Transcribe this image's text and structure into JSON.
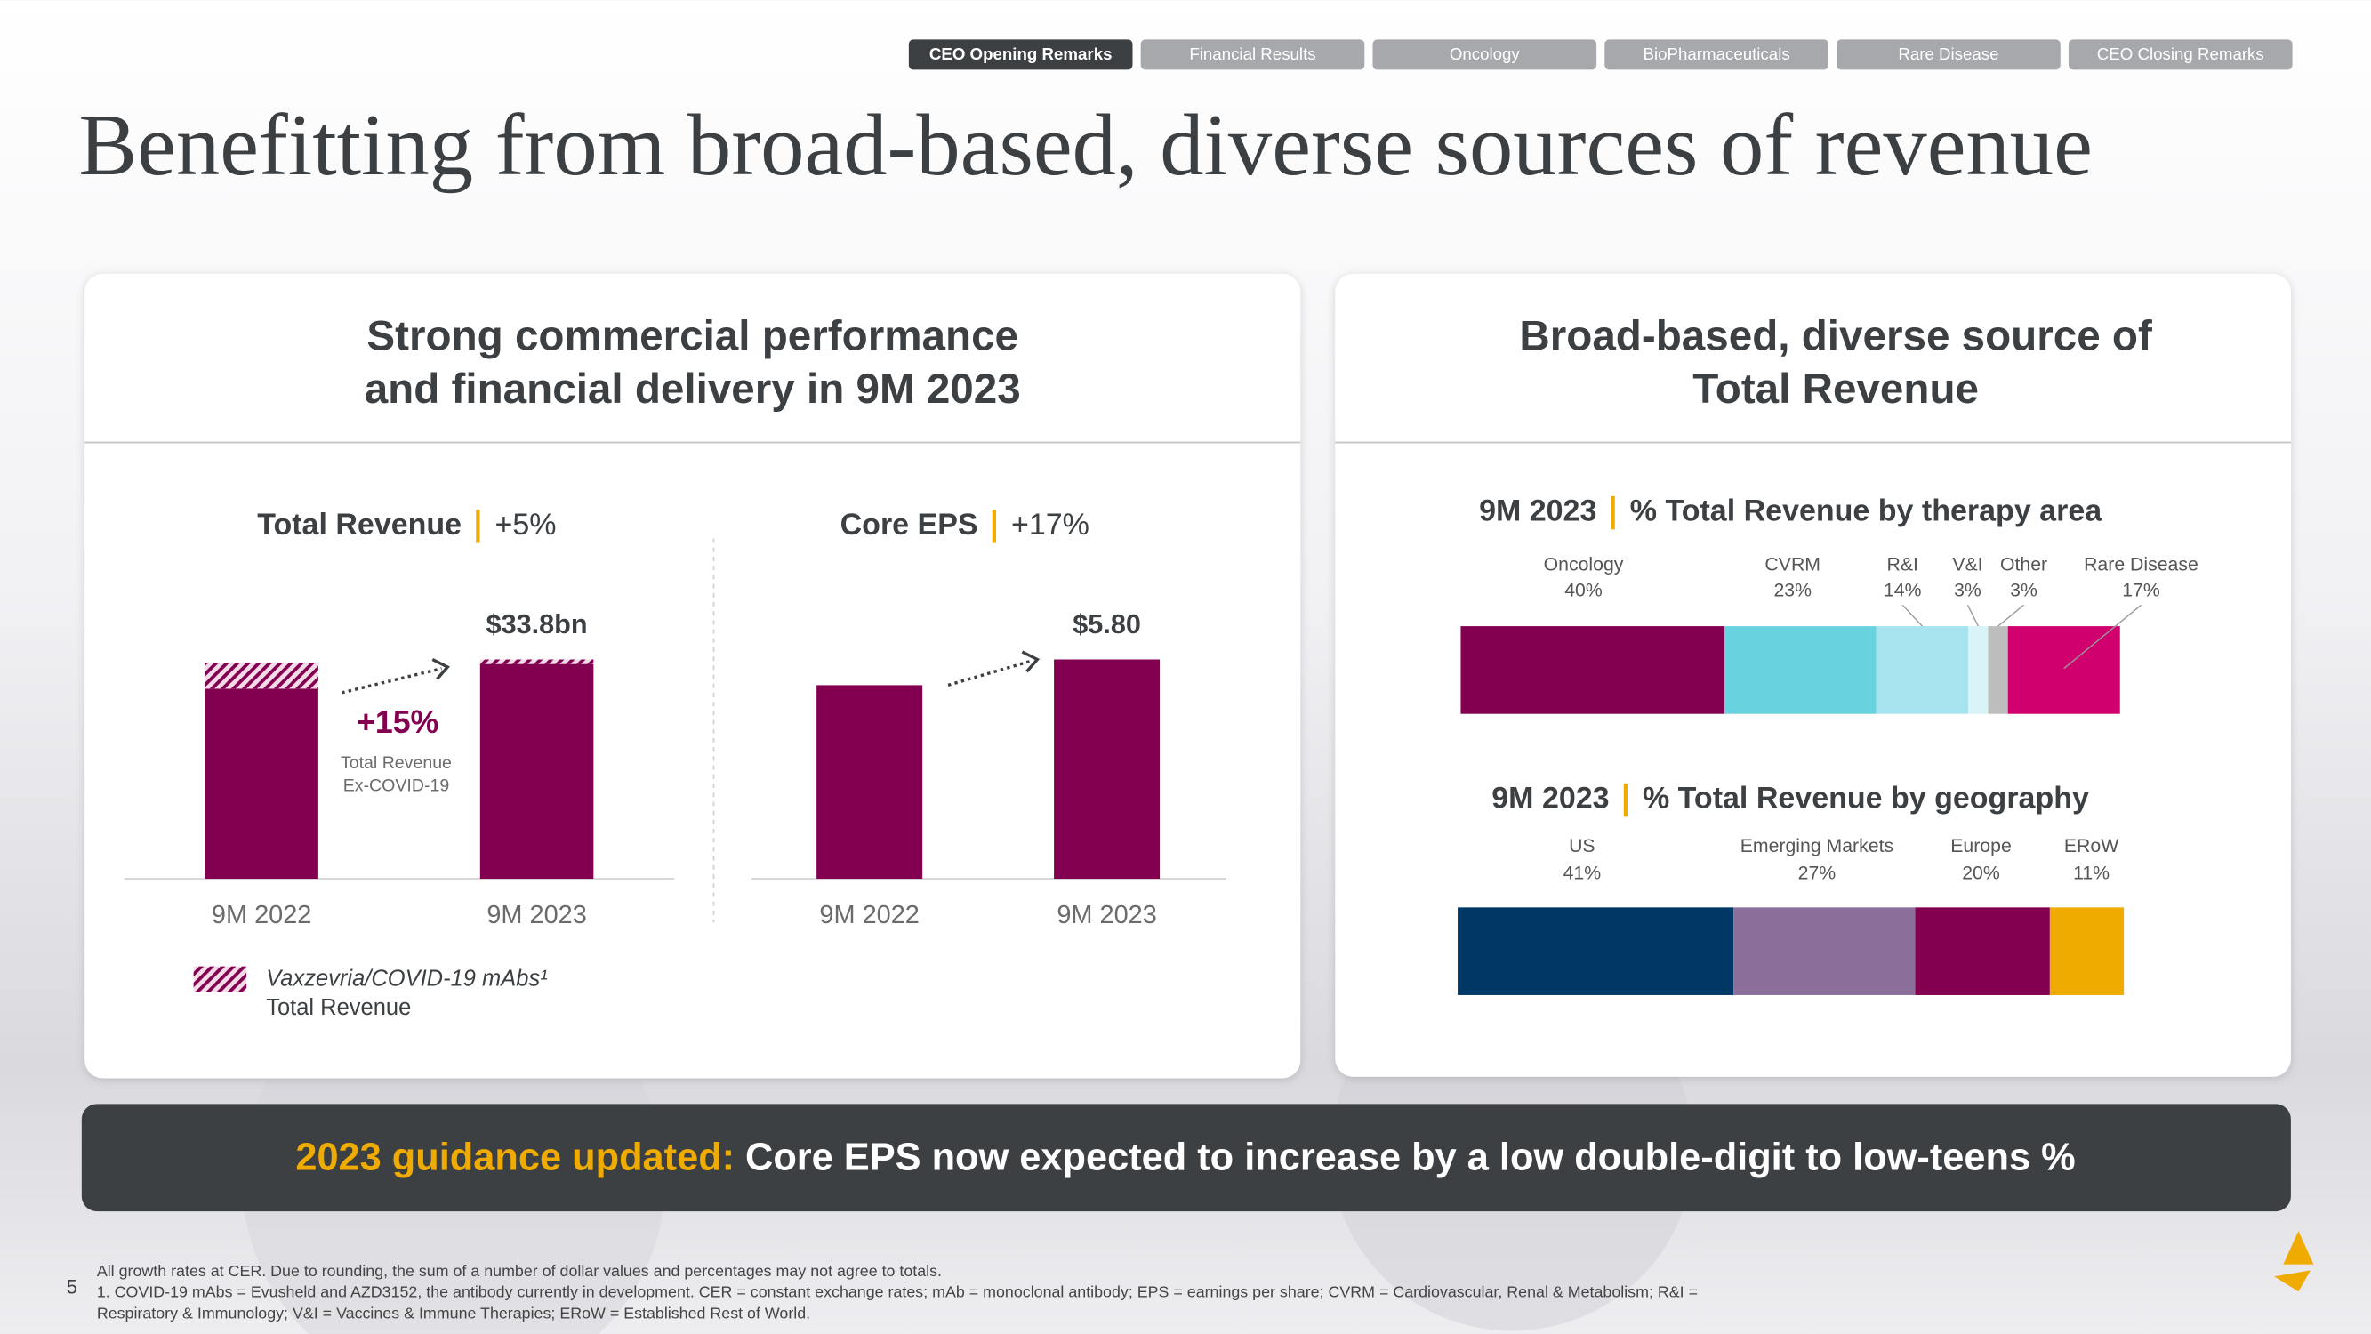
{
  "nav": [
    "CEO Opening Remarks",
    "Financial Results",
    "Oncology",
    "BioPharmaceuticals",
    "Rare Disease",
    "CEO Closing Remarks"
  ],
  "active_tab": 0,
  "title": "Benefitting from broad-based, diverse sources of revenue",
  "panels": [
    {
      "heading": [
        "Strong commercial performance",
        "and financial delivery in 9M 2023"
      ]
    },
    {
      "heading": [
        "Broad-based, diverse source of",
        "Total Revenue"
      ]
    }
  ],
  "chart_data": [
    {
      "type": "bar",
      "title": "Total Revenue",
      "title_detail": "+5%",
      "categories": [
        "9M 2022",
        "9M 2023"
      ],
      "series": [
        {
          "color": "#830051",
          "values": [
            29.3,
            33.1
          ]
        },
        {
          "name": "Vaxzevria/COVID-19 mAbs¹",
          "color": "#830051",
          "pattern": "hatch",
          "values": [
            4.0,
            0.7
          ]
        }
      ],
      "legend_note": "Total Revenue",
      "total_labels": [
        null,
        "$33.8bn"
      ],
      "annotation": {
        "label": "+15%",
        "text": [
          "Total Revenue",
          "Ex-COVID-19"
        ]
      }
    },
    {
      "type": "bar",
      "title": "Core EPS",
      "title_detail": "+17%",
      "categories": [
        "9M 2022",
        "9M 2023"
      ],
      "values": [
        5.12,
        5.8
      ],
      "value_labels": [
        null,
        "$5.80"
      ],
      "color": "#830051"
    },
    {
      "type": "stacked_hbar",
      "title": "9M 2023",
      "title_detail": "% Total Revenue by therapy area",
      "categories": [
        "Oncology",
        "CVRM",
        "R&I",
        "V&I",
        "Other",
        "Rare Disease"
      ],
      "values": [
        40,
        23,
        14,
        3,
        3,
        17
      ],
      "value_labels": [
        "40%",
        "23%",
        "14%",
        "3%",
        "3%",
        "17%"
      ],
      "colors": [
        "#830051",
        "#68d2df",
        "#a6e5ef",
        "#daf3f7",
        "#bdbdbd",
        "#d0006f"
      ]
    },
    {
      "type": "stacked_hbar",
      "title": "9M 2023",
      "title_detail": "% Total Revenue by geography",
      "categories": [
        "US",
        "Emerging Markets",
        "Europe",
        "ERoW"
      ],
      "values": [
        41,
        27,
        20,
        11
      ],
      "value_labels": [
        "41%",
        "27%",
        "20%",
        "11%"
      ],
      "colors": [
        "#003865",
        "#8b6f9a",
        "#830051",
        "#f0ab00"
      ]
    }
  ],
  "banner": {
    "highlight": "2023 guidance updated:",
    "text": "Core EPS now expected to increase by a low double-digit to low-teens %"
  },
  "footer": {
    "page": "5",
    "notes": [
      "All growth rates at CER. Due to rounding, the sum of a number of dollar values and percentages may not agree to totals.",
      "1. COVID-19 mAbs = Evusheld and AZD3152, the antibody currently in development. CER = constant exchange rates; mAb = monoclonal antibody; EPS = earnings per share; CVRM = Cardiovascular, Renal & Metabolism; R&I =",
      "Respiratory & Immunology; V&I = Vaccines & Immune Therapies; ERoW = Established Rest of World."
    ]
  }
}
